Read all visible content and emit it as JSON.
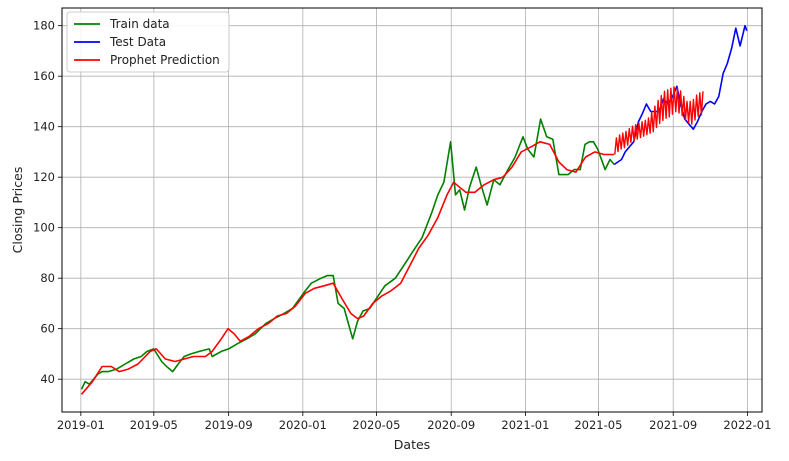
{
  "chart_data": {
    "type": "line",
    "title": "",
    "xlabel": "Dates",
    "ylabel": "Closing Prices",
    "xlim": [
      "2018-12-01",
      "2022-01-25"
    ],
    "ylim": [
      27,
      187
    ],
    "x_ticks": [
      "2019-01",
      "2019-05",
      "2019-09",
      "2020-01",
      "2020-05",
      "2020-09",
      "2021-01",
      "2021-05",
      "2021-09",
      "2022-01"
    ],
    "y_ticks": [
      40,
      60,
      80,
      100,
      120,
      140,
      160,
      180
    ],
    "grid": true,
    "legend_position": "top-left",
    "series": [
      {
        "name": "Train data",
        "color": "#008000",
        "points": [
          [
            "2019-01-02",
            36
          ],
          [
            "2019-01-08",
            39
          ],
          [
            "2019-01-15",
            38
          ],
          [
            "2019-01-22",
            40
          ],
          [
            "2019-01-29",
            42
          ],
          [
            "2019-02-05",
            43
          ],
          [
            "2019-02-15",
            43
          ],
          [
            "2019-03-01",
            44
          ],
          [
            "2019-03-15",
            46
          ],
          [
            "2019-03-29",
            48
          ],
          [
            "2019-04-10",
            49
          ],
          [
            "2019-04-20",
            51
          ],
          [
            "2019-05-01",
            52
          ],
          [
            "2019-05-06",
            50
          ],
          [
            "2019-05-14",
            47
          ],
          [
            "2019-05-22",
            45
          ],
          [
            "2019-06-01",
            43
          ],
          [
            "2019-06-10",
            46
          ],
          [
            "2019-06-20",
            49
          ],
          [
            "2019-07-01",
            50
          ],
          [
            "2019-07-15",
            51
          ],
          [
            "2019-07-31",
            52
          ],
          [
            "2019-08-05",
            49
          ],
          [
            "2019-08-20",
            51
          ],
          [
            "2019-09-01",
            52
          ],
          [
            "2019-09-15",
            54
          ],
          [
            "2019-10-01",
            56
          ],
          [
            "2019-10-15",
            58
          ],
          [
            "2019-11-01",
            62
          ],
          [
            "2019-11-15",
            64
          ],
          [
            "2019-12-01",
            66
          ],
          [
            "2019-12-15",
            68
          ],
          [
            "2020-01-02",
            74
          ],
          [
            "2020-01-15",
            78
          ],
          [
            "2020-01-31",
            80
          ],
          [
            "2020-02-10",
            81
          ],
          [
            "2020-02-20",
            81
          ],
          [
            "2020-02-28",
            70
          ],
          [
            "2020-03-09",
            68
          ],
          [
            "2020-03-16",
            62
          ],
          [
            "2020-03-23",
            56
          ],
          [
            "2020-03-31",
            63
          ],
          [
            "2020-04-09",
            67
          ],
          [
            "2020-04-20",
            68
          ],
          [
            "2020-05-01",
            72
          ],
          [
            "2020-05-15",
            77
          ],
          [
            "2020-06-01",
            80
          ],
          [
            "2020-06-15",
            85
          ],
          [
            "2020-07-01",
            91
          ],
          [
            "2020-07-15",
            96
          ],
          [
            "2020-07-31",
            106
          ],
          [
            "2020-08-10",
            113
          ],
          [
            "2020-08-20",
            118
          ],
          [
            "2020-08-31",
            134
          ],
          [
            "2020-09-08",
            113
          ],
          [
            "2020-09-15",
            115
          ],
          [
            "2020-09-23",
            107
          ],
          [
            "2020-10-01",
            116
          ],
          [
            "2020-10-12",
            124
          ],
          [
            "2020-10-20",
            117
          ],
          [
            "2020-10-30",
            109
          ],
          [
            "2020-11-10",
            119
          ],
          [
            "2020-11-20",
            117
          ],
          [
            "2020-12-01",
            122
          ],
          [
            "2020-12-15",
            128
          ],
          [
            "2020-12-28",
            136
          ],
          [
            "2021-01-05",
            131
          ],
          [
            "2021-01-15",
            128
          ],
          [
            "2021-01-26",
            143
          ],
          [
            "2021-02-05",
            136
          ],
          [
            "2021-02-15",
            135
          ],
          [
            "2021-02-25",
            121
          ],
          [
            "2021-03-05",
            121
          ],
          [
            "2021-03-12",
            121
          ],
          [
            "2021-03-22",
            123
          ],
          [
            "2021-04-01",
            123
          ],
          [
            "2021-04-09",
            133
          ],
          [
            "2021-04-16",
            134
          ],
          [
            "2021-04-23",
            134
          ],
          [
            "2021-04-30",
            131
          ],
          [
            "2021-05-12",
            123
          ],
          [
            "2021-05-20",
            127
          ],
          [
            "2021-05-27",
            125
          ]
        ]
      },
      {
        "name": "Test Data",
        "color": "#0000ff",
        "points": [
          [
            "2021-05-27",
            125
          ],
          [
            "2021-06-08",
            127
          ],
          [
            "2021-06-14",
            130
          ],
          [
            "2021-06-21",
            132
          ],
          [
            "2021-06-28",
            134
          ],
          [
            "2021-07-06",
            142
          ],
          [
            "2021-07-12",
            145
          ],
          [
            "2021-07-19",
            149
          ],
          [
            "2021-07-26",
            146
          ],
          [
            "2021-08-02",
            146
          ],
          [
            "2021-08-09",
            146
          ],
          [
            "2021-08-16",
            151
          ],
          [
            "2021-08-23",
            149
          ],
          [
            "2021-08-31",
            152
          ],
          [
            "2021-09-07",
            156
          ],
          [
            "2021-09-13",
            149
          ],
          [
            "2021-09-20",
            143
          ],
          [
            "2021-09-27",
            141
          ],
          [
            "2021-10-04",
            139
          ],
          [
            "2021-10-11",
            142
          ],
          [
            "2021-10-18",
            146
          ],
          [
            "2021-10-25",
            149
          ],
          [
            "2021-11-01",
            150
          ],
          [
            "2021-11-08",
            149
          ],
          [
            "2021-11-15",
            152
          ],
          [
            "2021-11-22",
            161
          ],
          [
            "2021-11-29",
            165
          ],
          [
            "2021-12-06",
            171
          ],
          [
            "2021-12-13",
            179
          ],
          [
            "2021-12-20",
            172
          ],
          [
            "2021-12-28",
            180
          ],
          [
            "2021-12-31",
            178
          ]
        ]
      },
      {
        "name": "Prophet Prediction",
        "color": "#ff0000",
        "points": [
          [
            "2019-01-02",
            34
          ],
          [
            "2019-01-20",
            39
          ],
          [
            "2019-02-05",
            45
          ],
          [
            "2019-02-20",
            45
          ],
          [
            "2019-03-05",
            43
          ],
          [
            "2019-03-20",
            44
          ],
          [
            "2019-04-05",
            46
          ],
          [
            "2019-04-25",
            51
          ],
          [
            "2019-05-05",
            52
          ],
          [
            "2019-05-20",
            48
          ],
          [
            "2019-06-05",
            47
          ],
          [
            "2019-06-20",
            48
          ],
          [
            "2019-07-05",
            49
          ],
          [
            "2019-07-25",
            49
          ],
          [
            "2019-08-05",
            51
          ],
          [
            "2019-08-20",
            56
          ],
          [
            "2019-08-31",
            60
          ],
          [
            "2019-09-10",
            58
          ],
          [
            "2019-09-20",
            55
          ],
          [
            "2019-10-05",
            57
          ],
          [
            "2019-10-20",
            60
          ],
          [
            "2019-11-05",
            62
          ],
          [
            "2019-11-20",
            65
          ],
          [
            "2019-12-05",
            66
          ],
          [
            "2019-12-20",
            69
          ],
          [
            "2020-01-05",
            74
          ],
          [
            "2020-01-20",
            76
          ],
          [
            "2020-02-05",
            77
          ],
          [
            "2020-02-20",
            78
          ],
          [
            "2020-03-05",
            72
          ],
          [
            "2020-03-20",
            66
          ],
          [
            "2020-03-31",
            64
          ],
          [
            "2020-04-10",
            65
          ],
          [
            "2020-04-25",
            70
          ],
          [
            "2020-05-10",
            73
          ],
          [
            "2020-05-25",
            75
          ],
          [
            "2020-06-10",
            78
          ],
          [
            "2020-06-25",
            85
          ],
          [
            "2020-07-10",
            92
          ],
          [
            "2020-07-25",
            97
          ],
          [
            "2020-08-10",
            104
          ],
          [
            "2020-08-25",
            113
          ],
          [
            "2020-09-05",
            118
          ],
          [
            "2020-09-15",
            116
          ],
          [
            "2020-09-25",
            114
          ],
          [
            "2020-10-10",
            114
          ],
          [
            "2020-10-25",
            117
          ],
          [
            "2020-11-10",
            119
          ],
          [
            "2020-11-25",
            120
          ],
          [
            "2020-12-10",
            124
          ],
          [
            "2020-12-25",
            130
          ],
          [
            "2021-01-10",
            132
          ],
          [
            "2021-01-25",
            134
          ],
          [
            "2021-02-10",
            133
          ],
          [
            "2021-02-25",
            126
          ],
          [
            "2021-03-10",
            123
          ],
          [
            "2021-03-25",
            122
          ],
          [
            "2021-04-10",
            128
          ],
          [
            "2021-04-25",
            130
          ],
          [
            "2021-05-10",
            129
          ],
          [
            "2021-05-27",
            129
          ]
        ],
        "forecast_band": {
          "start": "2021-05-28",
          "end": "2021-10-20",
          "low": [
            129,
            131,
            132,
            134,
            135,
            136,
            137,
            138,
            141,
            143,
            144,
            146,
            145,
            142,
            141,
            144,
            145
          ],
          "high": [
            135,
            137,
            138,
            140,
            141,
            142,
            143,
            147,
            151,
            154,
            155,
            156,
            154,
            150,
            150,
            153,
            154
          ]
        }
      }
    ]
  }
}
